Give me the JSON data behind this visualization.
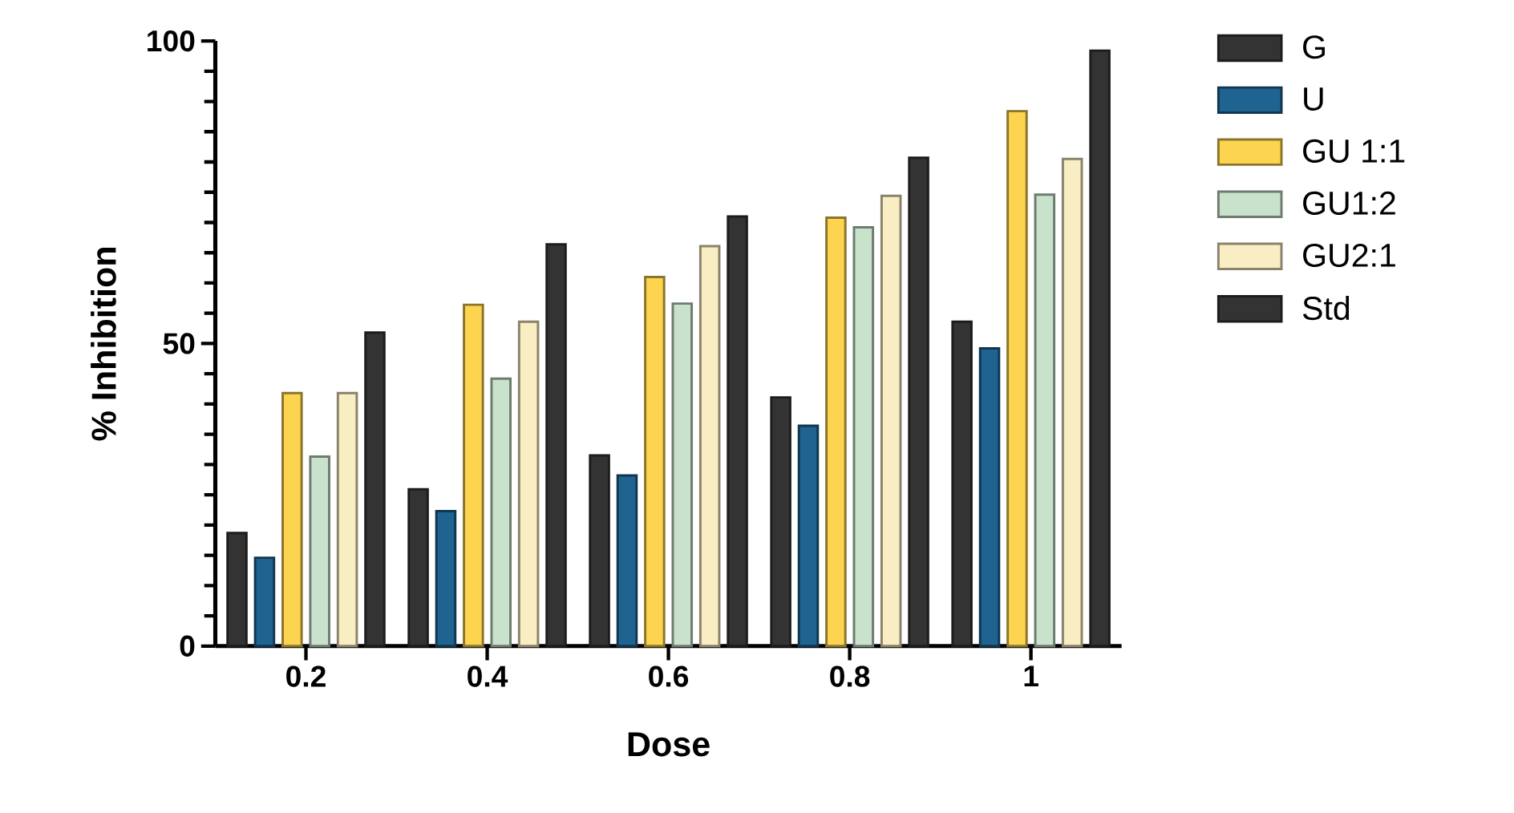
{
  "chart_data": {
    "type": "bar",
    "xlabel": "Dose",
    "ylabel": "% Inhibition",
    "categories": [
      "0.2",
      "0.4",
      "0.6",
      "0.8",
      "1"
    ],
    "series": [
      {
        "name": "G",
        "color": "#333333",
        "values": [
          18.7,
          25.9,
          31.5,
          41.1,
          53.6
        ]
      },
      {
        "name": "U",
        "color": "#1f6391",
        "values": [
          14.6,
          22.3,
          28.2,
          36.4,
          49.2
        ]
      },
      {
        "name": "GU 1:1",
        "color": "#fdd450",
        "values": [
          41.8,
          56.4,
          61.0,
          70.8,
          88.4
        ]
      },
      {
        "name": "GU1:2",
        "color": "#c8e2cb",
        "values": [
          31.3,
          44.2,
          56.6,
          69.2,
          74.6
        ]
      },
      {
        "name": "GU2:1",
        "color": "#f9eec3",
        "values": [
          41.8,
          53.6,
          66.1,
          74.4,
          80.5
        ]
      },
      {
        "name": "Std",
        "color": "#333333",
        "values": [
          51.8,
          66.4,
          71.0,
          80.7,
          98.4
        ]
      }
    ],
    "ylim": [
      0,
      100
    ],
    "yticks": [
      0,
      50,
      100
    ],
    "legend": "right"
  }
}
